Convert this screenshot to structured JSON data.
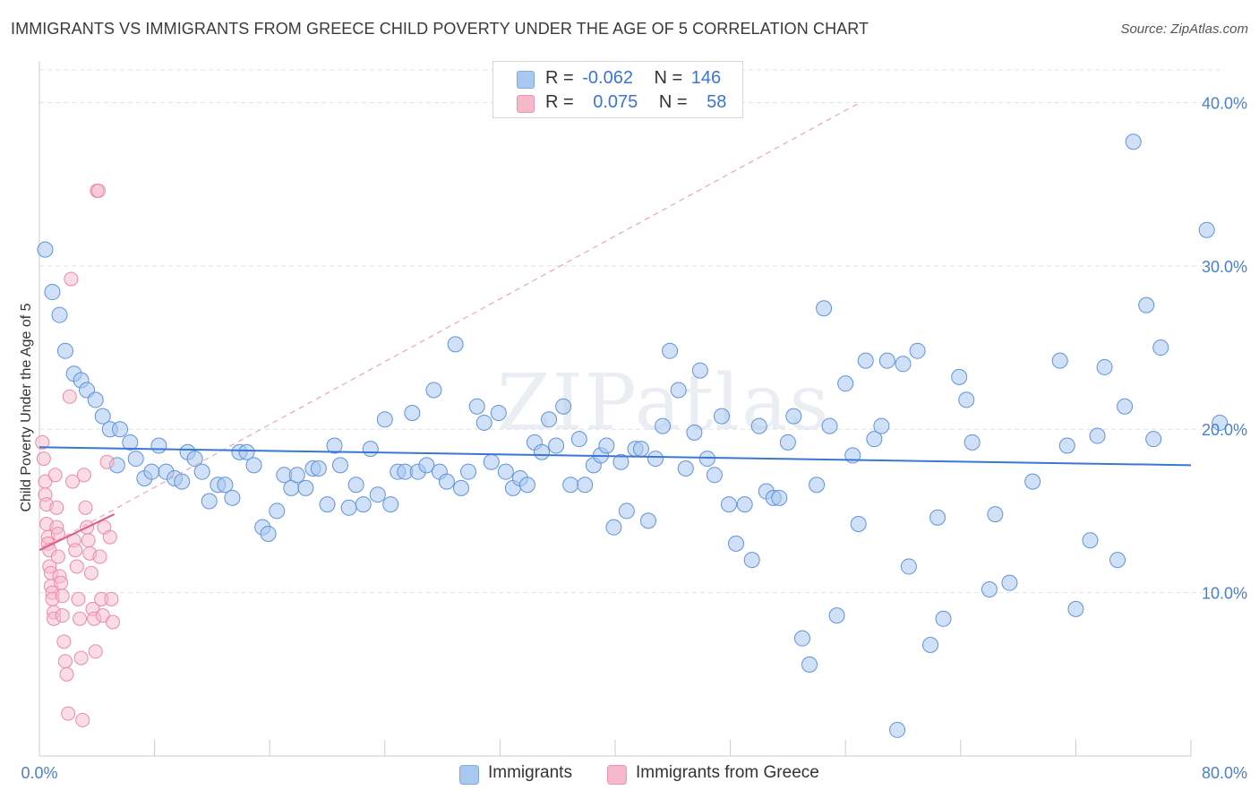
{
  "header": {
    "title": "IMMIGRANTS VS IMMIGRANTS FROM GREECE CHILD POVERTY UNDER THE AGE OF 5 CORRELATION CHART",
    "source": "Source: ZipAtlas.com"
  },
  "watermark": "ZIPatlas",
  "legend": {
    "rows": [
      {
        "r_label": "R =",
        "r_value": "-0.062",
        "n_label": "N =",
        "n_value": "146",
        "color": "#a9c8f0"
      },
      {
        "r_label": "R =",
        "r_value": "0.075",
        "n_label": "N =",
        "n_value": "58",
        "color": "#f6b9cb"
      }
    ]
  },
  "bottom_legend": {
    "items": [
      {
        "label": "Immigrants",
        "color": "#a9c8f0"
      },
      {
        "label": "Immigrants from Greece",
        "color": "#f6b9cb"
      }
    ]
  },
  "chart_data": {
    "type": "scatter",
    "title": "IMMIGRANTS VS IMMIGRANTS FROM GREECE CHILD POVERTY UNDER THE AGE OF 5 CORRELATION CHART",
    "xlabel": "",
    "ylabel": "Child Poverty Under the Age of 5",
    "xlim": [
      0,
      80
    ],
    "ylim": [
      0,
      42
    ],
    "x_tick_labels": [
      "0.0%",
      "80.0%"
    ],
    "y_ticks": [
      10,
      20,
      30,
      40
    ],
    "y_tick_labels": [
      "10.0%",
      "20.0%",
      "30.0%",
      "40.0%"
    ],
    "grid": true,
    "legend_position": "top-center",
    "colors": {
      "immigrants": "#4a86d9",
      "greece": "#e87096",
      "immigrants_fill": "#a9c8f0",
      "greece_fill": "#f6b9cb"
    },
    "series": [
      {
        "name": "Immigrants",
        "trend": {
          "x": [
            0,
            80
          ],
          "y": [
            18.9,
            17.8
          ]
        },
        "points": [
          [
            0.4,
            31.0
          ],
          [
            0.9,
            28.4
          ],
          [
            1.4,
            27.0
          ],
          [
            1.8,
            24.8
          ],
          [
            2.4,
            23.4
          ],
          [
            2.9,
            23.0
          ],
          [
            3.3,
            22.4
          ],
          [
            3.9,
            21.8
          ],
          [
            4.4,
            20.8
          ],
          [
            4.9,
            20.0
          ],
          [
            5.6,
            20.0
          ],
          [
            5.4,
            17.8
          ],
          [
            6.3,
            19.2
          ],
          [
            6.7,
            18.2
          ],
          [
            7.3,
            17.0
          ],
          [
            7.8,
            17.4
          ],
          [
            8.3,
            19.0
          ],
          [
            8.8,
            17.4
          ],
          [
            9.4,
            17.0
          ],
          [
            9.9,
            16.8
          ],
          [
            10.3,
            18.6
          ],
          [
            10.8,
            18.2
          ],
          [
            11.3,
            17.4
          ],
          [
            11.8,
            15.6
          ],
          [
            12.4,
            16.6
          ],
          [
            12.9,
            16.6
          ],
          [
            13.4,
            15.8
          ],
          [
            13.9,
            18.6
          ],
          [
            14.4,
            18.6
          ],
          [
            14.9,
            17.8
          ],
          [
            15.5,
            14.0
          ],
          [
            15.9,
            13.6
          ],
          [
            16.5,
            15.0
          ],
          [
            17.0,
            17.2
          ],
          [
            17.5,
            16.4
          ],
          [
            17.9,
            17.2
          ],
          [
            18.5,
            16.4
          ],
          [
            19.0,
            17.6
          ],
          [
            19.4,
            17.6
          ],
          [
            20.0,
            15.4
          ],
          [
            20.5,
            19.0
          ],
          [
            20.9,
            17.8
          ],
          [
            21.5,
            15.2
          ],
          [
            22.0,
            16.6
          ],
          [
            22.5,
            15.4
          ],
          [
            23.0,
            18.8
          ],
          [
            23.5,
            16.0
          ],
          [
            24.0,
            20.6
          ],
          [
            24.4,
            15.4
          ],
          [
            24.9,
            17.4
          ],
          [
            25.4,
            17.4
          ],
          [
            25.9,
            21.0
          ],
          [
            26.3,
            17.4
          ],
          [
            26.9,
            17.8
          ],
          [
            27.4,
            22.4
          ],
          [
            27.8,
            17.4
          ],
          [
            28.3,
            16.8
          ],
          [
            28.9,
            25.2
          ],
          [
            29.3,
            16.4
          ],
          [
            29.8,
            17.4
          ],
          [
            30.4,
            21.4
          ],
          [
            30.9,
            20.4
          ],
          [
            31.4,
            18.0
          ],
          [
            31.9,
            21.0
          ],
          [
            32.4,
            17.4
          ],
          [
            32.9,
            16.4
          ],
          [
            33.4,
            17.0
          ],
          [
            33.9,
            16.6
          ],
          [
            34.4,
            19.2
          ],
          [
            34.9,
            18.6
          ],
          [
            35.4,
            20.6
          ],
          [
            35.9,
            19.0
          ],
          [
            36.4,
            21.4
          ],
          [
            36.9,
            16.6
          ],
          [
            37.5,
            19.4
          ],
          [
            37.9,
            16.6
          ],
          [
            38.5,
            17.8
          ],
          [
            39.0,
            18.4
          ],
          [
            39.4,
            19.0
          ],
          [
            39.9,
            14.0
          ],
          [
            40.4,
            18.0
          ],
          [
            40.8,
            15.0
          ],
          [
            41.4,
            18.8
          ],
          [
            41.8,
            18.8
          ],
          [
            42.3,
            14.4
          ],
          [
            42.8,
            18.2
          ],
          [
            43.3,
            20.2
          ],
          [
            43.8,
            24.8
          ],
          [
            44.4,
            22.4
          ],
          [
            44.9,
            17.6
          ],
          [
            45.5,
            19.8
          ],
          [
            45.9,
            23.6
          ],
          [
            46.4,
            18.2
          ],
          [
            46.9,
            17.2
          ],
          [
            47.4,
            20.8
          ],
          [
            47.9,
            15.4
          ],
          [
            48.4,
            13.0
          ],
          [
            49.0,
            15.4
          ],
          [
            49.5,
            12.0
          ],
          [
            50.0,
            20.2
          ],
          [
            50.5,
            16.2
          ],
          [
            51.0,
            15.8
          ],
          [
            51.4,
            15.8
          ],
          [
            52.0,
            19.2
          ],
          [
            52.4,
            20.8
          ],
          [
            53.0,
            7.2
          ],
          [
            53.5,
            5.6
          ],
          [
            54.0,
            16.6
          ],
          [
            54.5,
            27.4
          ],
          [
            54.9,
            20.2
          ],
          [
            55.4,
            8.6
          ],
          [
            56.0,
            22.8
          ],
          [
            56.5,
            18.4
          ],
          [
            56.9,
            14.2
          ],
          [
            57.4,
            24.2
          ],
          [
            58.0,
            19.4
          ],
          [
            58.5,
            20.2
          ],
          [
            58.9,
            24.2
          ],
          [
            59.6,
            1.6
          ],
          [
            60.0,
            24.0
          ],
          [
            60.4,
            11.6
          ],
          [
            61.0,
            24.8
          ],
          [
            61.9,
            6.8
          ],
          [
            62.4,
            14.6
          ],
          [
            62.8,
            8.4
          ],
          [
            63.9,
            23.2
          ],
          [
            64.4,
            21.8
          ],
          [
            64.8,
            19.2
          ],
          [
            66.0,
            10.2
          ],
          [
            66.4,
            14.8
          ],
          [
            67.4,
            10.6
          ],
          [
            69.0,
            16.8
          ],
          [
            70.9,
            24.2
          ],
          [
            71.4,
            19.0
          ],
          [
            72.0,
            9.0
          ],
          [
            73.0,
            13.2
          ],
          [
            73.5,
            19.6
          ],
          [
            74.0,
            23.8
          ],
          [
            74.9,
            12.0
          ],
          [
            75.4,
            21.4
          ],
          [
            76.0,
            37.6
          ],
          [
            76.9,
            27.6
          ],
          [
            77.4,
            19.4
          ],
          [
            77.9,
            25.0
          ],
          [
            81.1,
            32.2
          ],
          [
            82.0,
            20.4
          ]
        ]
      },
      {
        "name": "Immigrants from Greece",
        "trend": {
          "x": [
            0,
            5.2
          ],
          "y": [
            12.6,
            14.8
          ]
        },
        "trend_extended": {
          "x": [
            0,
            57
          ],
          "y": [
            12.6,
            40.0
          ]
        },
        "points": [
          [
            0.2,
            19.2
          ],
          [
            0.3,
            18.2
          ],
          [
            0.4,
            16.8
          ],
          [
            0.4,
            16.0
          ],
          [
            0.5,
            15.4
          ],
          [
            0.5,
            14.2
          ],
          [
            0.6,
            13.4
          ],
          [
            0.6,
            13.0
          ],
          [
            0.7,
            12.6
          ],
          [
            0.7,
            11.6
          ],
          [
            0.8,
            11.2
          ],
          [
            0.8,
            10.4
          ],
          [
            0.9,
            10.0
          ],
          [
            0.9,
            9.6
          ],
          [
            1.0,
            8.8
          ],
          [
            1.0,
            8.4
          ],
          [
            1.1,
            17.2
          ],
          [
            1.2,
            15.2
          ],
          [
            1.2,
            14.0
          ],
          [
            1.3,
            13.6
          ],
          [
            1.3,
            12.2
          ],
          [
            1.4,
            11.0
          ],
          [
            1.5,
            10.6
          ],
          [
            1.6,
            9.8
          ],
          [
            1.6,
            8.6
          ],
          [
            1.7,
            7.0
          ],
          [
            1.8,
            5.8
          ],
          [
            1.9,
            5.0
          ],
          [
            2.0,
            2.6
          ],
          [
            2.1,
            22.0
          ],
          [
            2.2,
            29.2
          ],
          [
            2.3,
            16.8
          ],
          [
            2.4,
            13.2
          ],
          [
            2.5,
            12.6
          ],
          [
            2.6,
            11.6
          ],
          [
            2.7,
            9.6
          ],
          [
            2.8,
            8.4
          ],
          [
            2.9,
            6.0
          ],
          [
            3.0,
            2.2
          ],
          [
            3.1,
            17.2
          ],
          [
            3.2,
            15.2
          ],
          [
            3.3,
            14.0
          ],
          [
            3.4,
            13.2
          ],
          [
            3.5,
            12.4
          ],
          [
            3.6,
            11.2
          ],
          [
            3.7,
            9.0
          ],
          [
            3.8,
            8.4
          ],
          [
            3.9,
            6.4
          ],
          [
            4.0,
            34.6
          ],
          [
            4.1,
            34.6
          ],
          [
            4.2,
            12.2
          ],
          [
            4.3,
            9.6
          ],
          [
            4.4,
            8.6
          ],
          [
            4.5,
            14.0
          ],
          [
            4.7,
            18.0
          ],
          [
            4.9,
            13.4
          ],
          [
            5.0,
            9.6
          ],
          [
            5.1,
            8.2
          ]
        ]
      }
    ]
  }
}
